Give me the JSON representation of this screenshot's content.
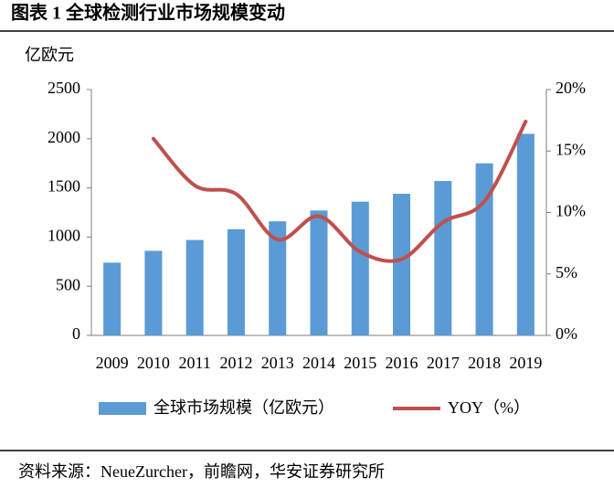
{
  "chart_data": {
    "type": "bar-line",
    "title": "图表 1  全球检测行业市场规模变动",
    "y_label": "亿欧元",
    "source": "资料来源：NeueZurcher，前瞻网，华安证券研究所",
    "categories": [
      "2009",
      "2010",
      "2011",
      "2012",
      "2013",
      "2014",
      "2015",
      "2016",
      "2017",
      "2018",
      "2019"
    ],
    "series": [
      {
        "name": "全球市场规模（亿欧元）",
        "type": "bar",
        "color": "#5b9bd5",
        "values": [
          740,
          860,
          970,
          1080,
          1160,
          1270,
          1360,
          1440,
          1570,
          1750,
          2050
        ]
      },
      {
        "name": "YOY（%）",
        "type": "line",
        "axis": "y2",
        "color": "#c0504d",
        "values": [
          null,
          16,
          12.2,
          11.5,
          7.8,
          9.7,
          6.8,
          6.2,
          9.2,
          10.9,
          17.4
        ]
      }
    ],
    "ylim": [
      0,
      2500
    ],
    "yticks": [
      0,
      500,
      1000,
      1500,
      2000,
      2500
    ],
    "y2lim": [
      0,
      20
    ],
    "y2ticks": [
      {
        "value": 0,
        "label": "0%"
      },
      {
        "value": 5,
        "label": "5%"
      },
      {
        "value": 10,
        "label": "10%"
      },
      {
        "value": 15,
        "label": "15%"
      },
      {
        "value": 20,
        "label": "20%"
      }
    ]
  }
}
